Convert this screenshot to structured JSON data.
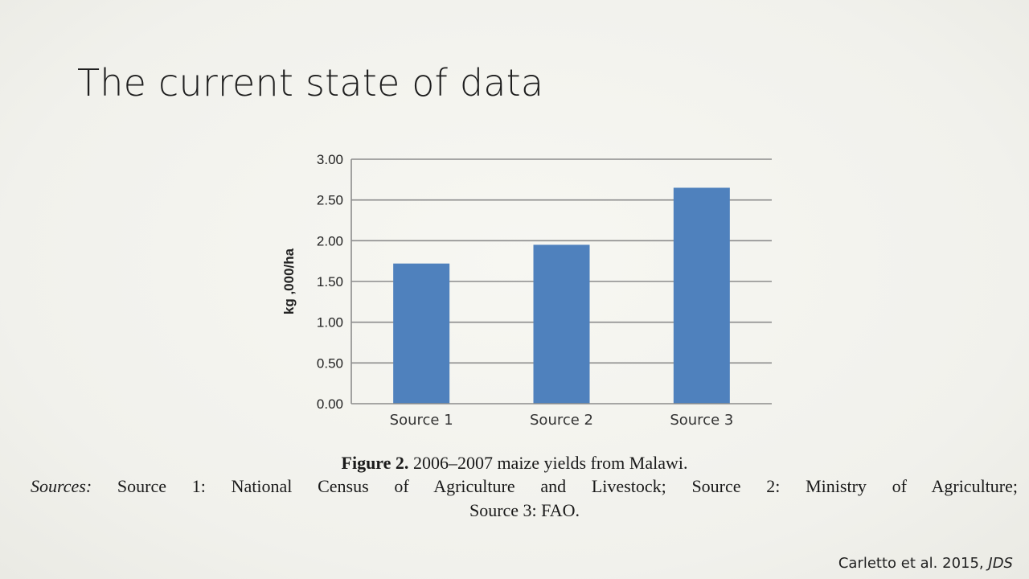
{
  "slide": {
    "title": "The current state of data"
  },
  "chart_data": {
    "type": "bar",
    "categories": [
      "Source 1",
      "Source 2",
      "Source 3"
    ],
    "values": [
      1.72,
      1.95,
      2.65
    ],
    "ylabel": "kg ,000/ha",
    "ylim": [
      0,
      3
    ],
    "yticks": [
      "0.00",
      "0.50",
      "1.00",
      "1.50",
      "2.00",
      "2.50",
      "3.00"
    ],
    "ytick_values": [
      0,
      0.5,
      1,
      1.5,
      2,
      2.5,
      3
    ],
    "grid": true,
    "bar_color": "#4f81bd"
  },
  "caption": {
    "figure_label": "Figure 2.",
    "figure_text": "2006–2007 maize yields from Malawi.",
    "sources_label": "Sources:",
    "sources_text": "Source 1: National Census of Agriculture and Livestock; Source 2: Ministry of Agriculture;",
    "sources_text_2": "Source 3: FAO."
  },
  "citation": {
    "authors": "Carletto et al. 2015,",
    "journal": "JDS"
  }
}
